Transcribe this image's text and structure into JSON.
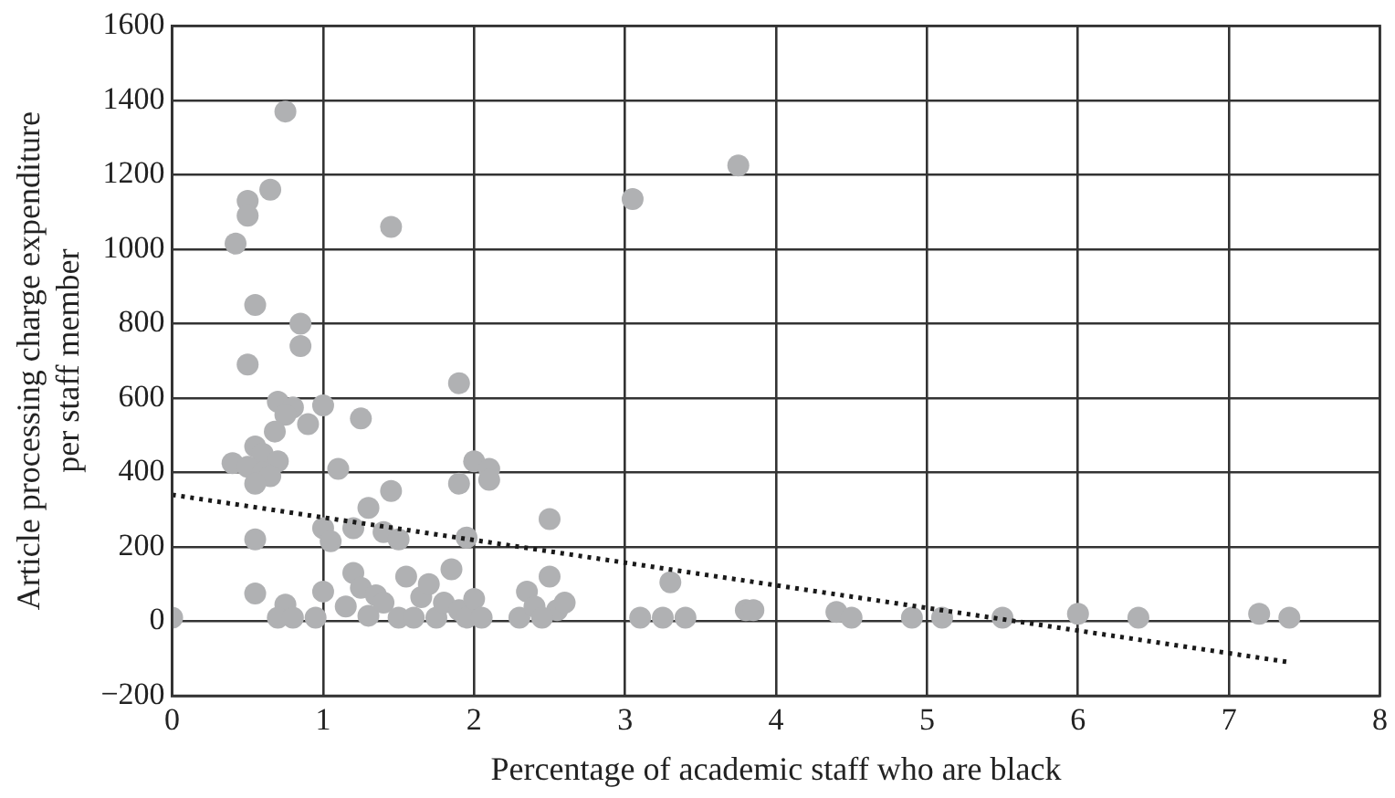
{
  "chart_data": {
    "type": "scatter",
    "xlabel": "Percentage of academic staff who are black",
    "ylabel": "Article processing charge expenditure per staff member",
    "xlim": [
      0,
      8
    ],
    "xticks": [
      0,
      1,
      2,
      3,
      4,
      5,
      6,
      7,
      8
    ],
    "ylim": [
      -200,
      1600
    ],
    "yticks": [
      {
        "value": -200,
        "label": "−200"
      },
      0,
      200,
      400,
      600,
      800,
      1000,
      1200,
      1400,
      1600
    ],
    "grid": true,
    "legend": false,
    "marker": "circle",
    "series": [
      {
        "color": "#b0b1b3",
        "x": [
          0.75,
          0.5,
          0.65,
          0.5,
          0.42,
          1.45,
          0.55,
          0.85,
          0.85,
          0.5,
          0.7,
          0.8,
          0.9,
          1.0,
          0.75,
          0.55,
          0.6,
          0.4,
          0.5,
          0.7,
          0.6,
          0.65,
          0.55,
          0.68,
          1.1,
          1.25,
          1.3,
          1.2,
          1.0,
          1.05,
          1.45,
          1.4,
          1.5,
          0.55,
          0.55,
          0.75,
          0.7,
          0.8,
          0.95,
          1.0,
          1.15,
          1.2,
          1.25,
          1.3,
          1.35,
          1.4,
          1.5,
          1.55,
          1.6,
          1.65,
          1.7,
          1.75,
          1.8,
          1.85,
          1.9,
          1.95,
          2.0,
          2.05,
          1.9,
          1.9,
          2.0,
          2.1,
          2.1,
          1.95,
          2.35,
          2.3,
          2.4,
          2.5,
          2.5,
          2.55,
          2.6,
          2.45,
          3.05,
          3.75,
          3.1,
          3.25,
          3.3,
          3.4,
          3.8,
          3.85,
          4.4,
          4.5,
          4.9,
          5.1,
          5.5,
          6.0,
          6.4,
          7.2,
          7.4,
          0.0
        ],
        "values": [
          1370,
          1130,
          1160,
          1090,
          1015,
          1060,
          850,
          800,
          740,
          690,
          590,
          575,
          530,
          580,
          555,
          470,
          450,
          425,
          415,
          430,
          400,
          390,
          370,
          510,
          410,
          545,
          305,
          250,
          250,
          215,
          350,
          240,
          220,
          220,
          75,
          45,
          10,
          10,
          10,
          80,
          40,
          130,
          90,
          15,
          70,
          50,
          10,
          120,
          10,
          65,
          100,
          10,
          50,
          140,
          30,
          10,
          60,
          10,
          640,
          370,
          430,
          410,
          380,
          225,
          80,
          10,
          40,
          120,
          275,
          30,
          50,
          10,
          1135,
          1225,
          10,
          10,
          105,
          10,
          30,
          30,
          25,
          10,
          10,
          10,
          10,
          20,
          10,
          20,
          10,
          10
        ]
      },
      {
        "type": "line",
        "color": "#1a1a1a",
        "line_style": "dotted",
        "marker": "none",
        "x": [
          0,
          7.4
        ],
        "values": [
          340,
          -110
        ]
      }
    ]
  }
}
